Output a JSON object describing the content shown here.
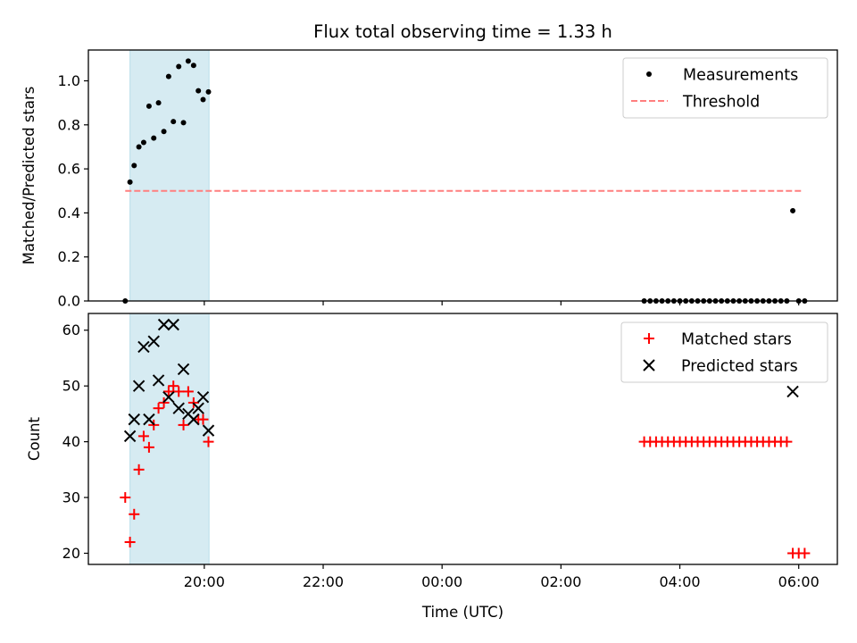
{
  "chart_data": [
    {
      "type": "scatter",
      "title": "Flux total observing time = 1.33 h",
      "xlabel": "",
      "ylabel": "Matched/Predicted stars",
      "xlim": [
        -1.95,
        10.65
      ],
      "ylim": [
        0,
        1.14
      ],
      "yticks": [
        0.0,
        0.2,
        0.4,
        0.6,
        0.8,
        1.0
      ],
      "ytick_labels": [
        "0.0",
        "0.2",
        "0.4",
        "0.6",
        "0.8",
        "1.0"
      ],
      "xticks": [
        0,
        2,
        4,
        6,
        8,
        10
      ],
      "shaded_region": {
        "x": [
          -1.25,
          0.08
        ],
        "color": "#add8e6",
        "alpha": 0.5
      },
      "legend": {
        "location": "upper right",
        "entries": [
          "Measurements",
          "Threshold"
        ]
      },
      "series": [
        {
          "name": "Measurements",
          "marker": "dot",
          "color": "#000000",
          "x": [
            -1.33,
            -1.25,
            -1.18,
            -1.1,
            -1.02,
            -0.93,
            -0.85,
            -0.77,
            -0.68,
            -0.6,
            -0.52,
            -0.43,
            -0.35,
            -0.27,
            -0.18,
            -0.1,
            -0.02,
            0.07,
            7.4,
            7.5,
            7.6,
            7.7,
            7.8,
            7.9,
            8.0,
            8.1,
            8.2,
            8.3,
            8.4,
            8.5,
            8.6,
            8.7,
            8.8,
            8.9,
            9.0,
            9.1,
            9.2,
            9.3,
            9.4,
            9.5,
            9.6,
            9.7,
            9.8,
            9.9,
            10.0,
            10.1
          ],
          "y": [
            0.0,
            0.54,
            0.615,
            0.7,
            0.72,
            0.885,
            0.74,
            0.9,
            0.77,
            1.02,
            0.815,
            1.065,
            0.81,
            1.09,
            1.07,
            0.955,
            0.915,
            0.95,
            0,
            0,
            0,
            0,
            0,
            0,
            0,
            0,
            0,
            0,
            0,
            0,
            0,
            0,
            0,
            0,
            0,
            0,
            0,
            0,
            0,
            0,
            0,
            0,
            0,
            0.41,
            0,
            0
          ]
        },
        {
          "name": "Threshold",
          "style": "dashed",
          "color": "#ff7f7f",
          "x": [
            -1.33,
            10.05
          ],
          "y": [
            0.5,
            0.5
          ]
        }
      ]
    },
    {
      "type": "scatter",
      "title": "",
      "xlabel": "Time (UTC)",
      "ylabel": "Count",
      "xlim": [
        -1.95,
        10.65
      ],
      "ylim": [
        18,
        63
      ],
      "yticks": [
        20,
        30,
        40,
        50,
        60
      ],
      "ytick_labels": [
        "20",
        "30",
        "40",
        "50",
        "60"
      ],
      "xticks": [
        0,
        2,
        4,
        6,
        8,
        10
      ],
      "xtick_labels": [
        "20:00",
        "22:00",
        "00:00",
        "02:00",
        "04:00",
        "06:00"
      ],
      "shaded_region": {
        "x": [
          -1.25,
          0.08
        ],
        "color": "#add8e6",
        "alpha": 0.5
      },
      "legend": {
        "location": "upper right",
        "entries": [
          "Matched stars",
          "Predicted stars"
        ]
      },
      "series": [
        {
          "name": "Matched stars",
          "marker": "plus",
          "color": "#ff0000",
          "x": [
            -1.33,
            -1.25,
            -1.18,
            -1.1,
            -1.02,
            -0.93,
            -0.85,
            -0.77,
            -0.68,
            -0.6,
            -0.52,
            -0.43,
            -0.35,
            -0.27,
            -0.18,
            -0.1,
            -0.02,
            0.07,
            7.4,
            7.5,
            7.6,
            7.7,
            7.8,
            7.9,
            8.0,
            8.1,
            8.2,
            8.3,
            8.4,
            8.5,
            8.6,
            8.7,
            8.8,
            8.9,
            9.0,
            9.1,
            9.2,
            9.3,
            9.4,
            9.5,
            9.6,
            9.7,
            9.8,
            9.9,
            10.0,
            10.1
          ],
          "y": [
            30,
            22,
            27,
            35,
            41,
            39,
            43,
            46,
            47,
            49,
            50,
            49,
            43,
            49,
            47,
            44,
            44,
            40,
            40,
            40,
            40,
            40,
            40,
            40,
            40,
            40,
            40,
            40,
            40,
            40,
            40,
            40,
            40,
            40,
            40,
            40,
            40,
            40,
            40,
            40,
            40,
            40,
            40,
            20,
            20,
            20
          ]
        },
        {
          "name": "Predicted stars",
          "marker": "x",
          "color": "#000000",
          "x": [
            -1.25,
            -1.18,
            -1.1,
            -1.02,
            -0.93,
            -0.85,
            -0.77,
            -0.68,
            -0.6,
            -0.52,
            -0.43,
            -0.35,
            -0.27,
            -0.18,
            -0.1,
            -0.02,
            0.07,
            9.9
          ],
          "y": [
            41,
            44,
            50,
            57,
            44,
            58,
            51,
            61,
            48,
            61,
            46,
            53,
            45,
            44,
            46,
            48,
            42,
            49
          ]
        }
      ]
    }
  ]
}
